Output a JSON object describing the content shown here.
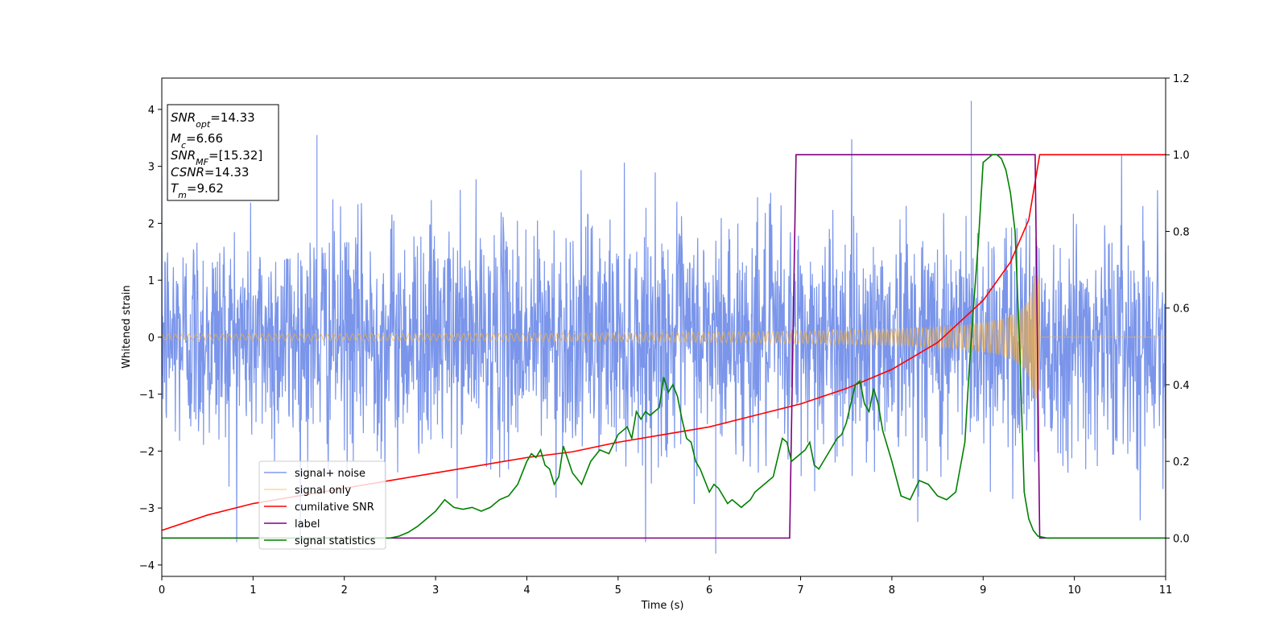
{
  "chart_data": {
    "type": "line",
    "xlabel": "Time (s)",
    "ylabel": "Whitened strain",
    "xlim": [
      0,
      11
    ],
    "ylim_left": [
      -4.2,
      4.55
    ],
    "ylim_right": [
      -0.1,
      1.2
    ],
    "x_ticks": [
      0,
      1,
      2,
      3,
      4,
      5,
      6,
      7,
      8,
      9,
      10,
      11
    ],
    "y_left_ticks": [
      -4,
      -3,
      -2,
      -1,
      0,
      1,
      2,
      3,
      4
    ],
    "y_right_ticks": [
      0.0,
      0.2,
      0.4,
      0.6,
      0.8,
      1.0,
      1.2
    ],
    "grid": false,
    "legend_position": "lower-left",
    "info_box": {
      "snr_opt": {
        "name": "SNR",
        "sub": "opt",
        "value": "=14.33"
      },
      "mc": {
        "name": "M",
        "sub": "c",
        "value": "=6.66"
      },
      "snr_mf": {
        "name": "SNR",
        "sub": "MF",
        "value": "=[15.32]"
      },
      "csnr": {
        "name": "CSNR",
        "sub": "",
        "value": "=14.33"
      },
      "tm": {
        "name": "T",
        "sub": "m",
        "value": "=9.62"
      }
    },
    "series": [
      {
        "name": "signal+ noise",
        "color": "#6b8ae8",
        "axis": "left",
        "description_values": {
          "noise_std": 1.0,
          "x_range": [
            0,
            11
          ],
          "notable_peaks": [
            [
              1.7,
              3.55
            ],
            [
              8.87,
              4.15
            ],
            [
              6.07,
              -3.8
            ]
          ]
        }
      },
      {
        "name": "signal only",
        "color": "#f5b041",
        "axis": "left",
        "chirp": {
          "start": 0,
          "merger": 9.62,
          "amp_start": 0.05,
          "amp_end": 1.1
        }
      },
      {
        "name": "cumilative SNR",
        "color": "#ff0000",
        "axis": "right",
        "x": [
          0,
          0.5,
          1,
          1.5,
          2,
          2.5,
          3,
          3.5,
          4,
          4.5,
          5,
          5.5,
          6,
          6.5,
          7,
          7.5,
          8,
          8.5,
          9,
          9.3,
          9.5,
          9.62,
          11
        ],
        "y": [
          0.02,
          0.06,
          0.09,
          0.11,
          0.13,
          0.15,
          0.17,
          0.19,
          0.21,
          0.225,
          0.25,
          0.27,
          0.29,
          0.32,
          0.35,
          0.39,
          0.44,
          0.51,
          0.62,
          0.72,
          0.83,
          1.0,
          1.0
        ]
      },
      {
        "name": "label",
        "color": "#800080",
        "axis": "right",
        "x": [
          0,
          6.88,
          6.95,
          9.57,
          9.62,
          11
        ],
        "y": [
          0,
          0,
          1,
          1,
          0,
          0
        ]
      },
      {
        "name": "signal statistics",
        "color": "#008000",
        "axis": "right",
        "x": [
          0,
          0.5,
          1,
          1.5,
          2,
          2.5,
          2.6,
          2.7,
          2.8,
          2.9,
          3.0,
          3.1,
          3.2,
          3.3,
          3.4,
          3.5,
          3.6,
          3.7,
          3.8,
          3.9,
          4.0,
          4.05,
          4.1,
          4.15,
          4.2,
          4.25,
          4.3,
          4.35,
          4.4,
          4.5,
          4.6,
          4.7,
          4.8,
          4.9,
          5.0,
          5.05,
          5.1,
          5.15,
          5.2,
          5.25,
          5.3,
          5.35,
          5.4,
          5.45,
          5.5,
          5.55,
          5.6,
          5.65,
          5.7,
          5.75,
          5.8,
          5.85,
          5.9,
          5.95,
          6.0,
          6.05,
          6.1,
          6.15,
          6.2,
          6.25,
          6.3,
          6.35,
          6.4,
          6.45,
          6.5,
          6.6,
          6.7,
          6.8,
          6.85,
          6.9,
          7.0,
          7.05,
          7.1,
          7.15,
          7.2,
          7.25,
          7.3,
          7.35,
          7.4,
          7.45,
          7.5,
          7.55,
          7.6,
          7.65,
          7.7,
          7.75,
          7.8,
          7.85,
          7.9,
          8.0,
          8.1,
          8.2,
          8.3,
          8.4,
          8.5,
          8.6,
          8.7,
          8.8,
          8.85,
          8.9,
          8.95,
          9.0,
          9.05,
          9.1,
          9.15,
          9.2,
          9.25,
          9.3,
          9.35,
          9.4,
          9.45,
          9.5,
          9.55,
          9.6,
          9.7,
          10,
          11
        ],
        "y": [
          0,
          0,
          0,
          0,
          0,
          0,
          0.005,
          0.015,
          0.03,
          0.05,
          0.07,
          0.1,
          0.08,
          0.075,
          0.08,
          0.07,
          0.08,
          0.1,
          0.11,
          0.14,
          0.2,
          0.22,
          0.21,
          0.23,
          0.19,
          0.18,
          0.14,
          0.16,
          0.24,
          0.17,
          0.14,
          0.2,
          0.23,
          0.22,
          0.27,
          0.28,
          0.29,
          0.26,
          0.33,
          0.31,
          0.33,
          0.32,
          0.33,
          0.34,
          0.42,
          0.38,
          0.4,
          0.37,
          0.31,
          0.26,
          0.25,
          0.2,
          0.18,
          0.15,
          0.12,
          0.14,
          0.13,
          0.11,
          0.09,
          0.1,
          0.09,
          0.08,
          0.09,
          0.1,
          0.12,
          0.14,
          0.16,
          0.26,
          0.25,
          0.2,
          0.22,
          0.23,
          0.25,
          0.19,
          0.18,
          0.2,
          0.22,
          0.24,
          0.26,
          0.27,
          0.3,
          0.35,
          0.4,
          0.41,
          0.35,
          0.33,
          0.39,
          0.35,
          0.28,
          0.2,
          0.11,
          0.1,
          0.15,
          0.14,
          0.11,
          0.1,
          0.12,
          0.25,
          0.45,
          0.62,
          0.78,
          0.98,
          0.99,
          1.0,
          1.0,
          0.99,
          0.96,
          0.9,
          0.8,
          0.5,
          0.12,
          0.05,
          0.02,
          0.005,
          0,
          0,
          0
        ]
      }
    ]
  }
}
